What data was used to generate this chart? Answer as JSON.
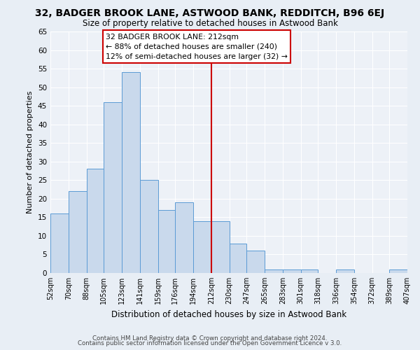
{
  "title1": "32, BADGER BROOK LANE, ASTWOOD BANK, REDDITCH, B96 6EJ",
  "title2": "Size of property relative to detached houses in Astwood Bank",
  "xlabel": "Distribution of detached houses by size in Astwood Bank",
  "ylabel": "Number of detached properties",
  "bin_edges": [
    52,
    70,
    88,
    105,
    123,
    141,
    159,
    176,
    194,
    212,
    230,
    247,
    265,
    283,
    301,
    318,
    336,
    354,
    372,
    389,
    407
  ],
  "bar_heights": [
    16,
    22,
    28,
    46,
    54,
    25,
    17,
    19,
    14,
    14,
    8,
    6,
    1,
    1,
    1,
    0,
    1,
    0,
    0,
    1
  ],
  "bar_color": "#c9d9ec",
  "bar_edge_color": "#5b9bd5",
  "vline_x": 212,
  "vline_color": "#cc0000",
  "ylim": [
    0,
    65
  ],
  "yticks": [
    0,
    5,
    10,
    15,
    20,
    25,
    30,
    35,
    40,
    45,
    50,
    55,
    60,
    65
  ],
  "xtick_labels": [
    "52sqm",
    "70sqm",
    "88sqm",
    "105sqm",
    "123sqm",
    "141sqm",
    "159sqm",
    "176sqm",
    "194sqm",
    "212sqm",
    "230sqm",
    "247sqm",
    "265sqm",
    "283sqm",
    "301sqm",
    "318sqm",
    "336sqm",
    "354sqm",
    "372sqm",
    "389sqm",
    "407sqm"
  ],
  "annotation_title": "32 BADGER BROOK LANE: 212sqm",
  "annotation_line1": "← 88% of detached houses are smaller (240)",
  "annotation_line2": "12% of semi-detached houses are larger (32) →",
  "annotation_box_color": "#ffffff",
  "annotation_box_edge": "#cc0000",
  "footer1": "Contains HM Land Registry data © Crown copyright and database right 2024.",
  "footer2": "Contains public sector information licensed under the Open Government Licence v 3.0.",
  "bg_color": "#e8eef5",
  "plot_bg_color": "#edf1f7"
}
